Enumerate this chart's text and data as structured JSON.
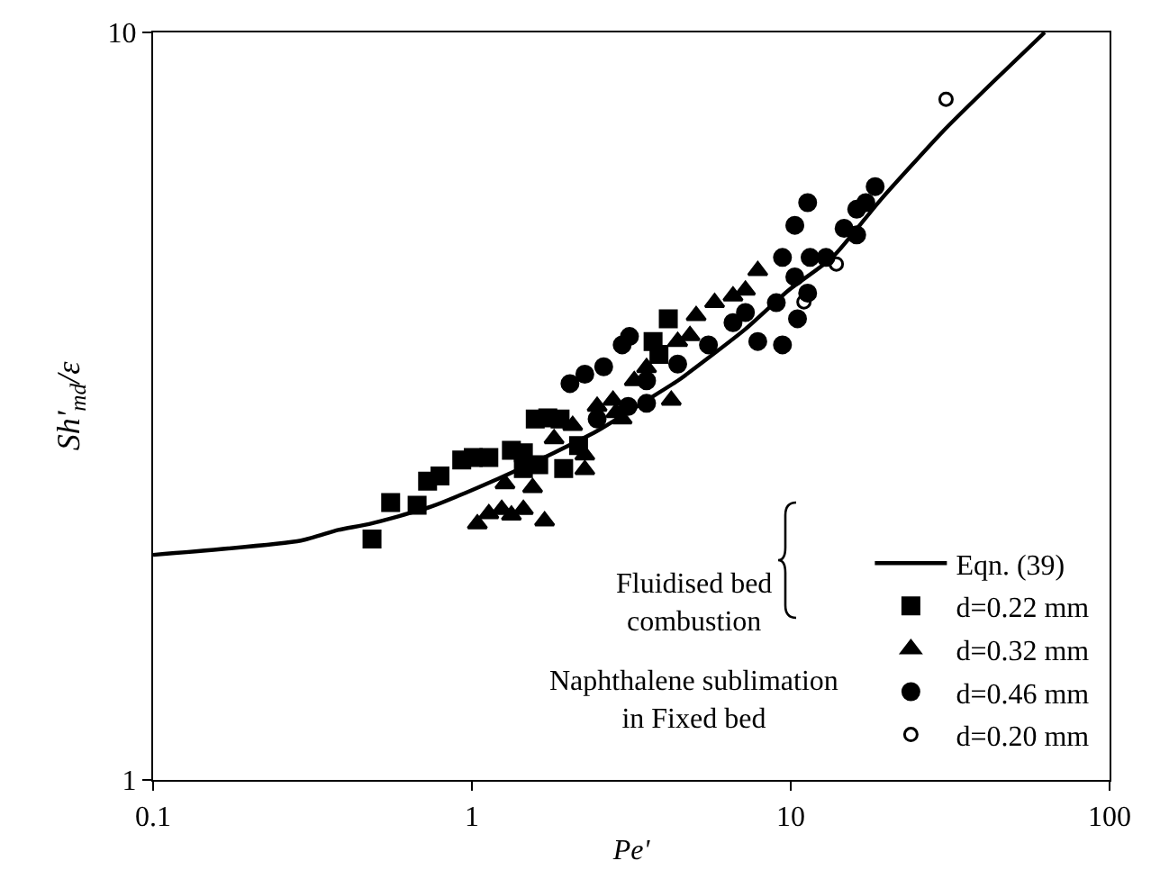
{
  "chart_data": {
    "type": "scatter",
    "xlabel": "Pe'",
    "ylabel": "Sh'$_{md}$/ε",
    "log": "xy",
    "grid": false,
    "legend": "bottom right",
    "xlim": [
      0.1,
      100
    ],
    "xticks": [
      0.1,
      1,
      10,
      100
    ],
    "ylim": [
      1,
      10
    ],
    "yticks": [
      1,
      10
    ],
    "annotations": [
      "Fluidised bed combustion",
      "Naphthalene sublimation in Fixed bed"
    ],
    "series": [
      {
        "name": "Eqn. (39)",
        "type": "line",
        "color": "#000000",
        "marker": "none",
        "line_style": "solid",
        "x": [
          0.1,
          0.291,
          0.381,
          0.476,
          0.743,
          1.21,
          1.81,
          2.47,
          3.53,
          4.42,
          5.52,
          7.21,
          9.85,
          13.5,
          19.2,
          30.0,
          42.8,
          62.6
        ],
        "values": [
          2.0,
          2.09,
          2.16,
          2.2,
          2.32,
          2.53,
          2.74,
          2.93,
          3.22,
          3.42,
          3.67,
          4.01,
          4.52,
          5.0,
          5.98,
          7.37,
          8.56,
          10
        ]
      },
      {
        "name": "d=0.22 mm",
        "color": "#000000",
        "marker": "square",
        "x": [
          0.486,
          0.556,
          0.673,
          0.726,
          0.794,
          0.929,
          1.01,
          1.13,
          1.33,
          1.45,
          1.58,
          1.73,
          1.89,
          1.45,
          1.62,
          1.94,
          2.16,
          3.7,
          4.13,
          3.86
        ],
        "values": [
          2.1,
          2.35,
          2.33,
          2.51,
          2.55,
          2.68,
          2.7,
          2.7,
          2.76,
          2.74,
          3.04,
          3.05,
          3.04,
          2.61,
          2.64,
          2.61,
          2.8,
          3.86,
          4.14,
          3.71
        ]
      },
      {
        "name": "d=0.32 mm",
        "color": "#000000",
        "marker": "triangle",
        "x": [
          1.04,
          1.13,
          1.24,
          1.33,
          1.45,
          1.69,
          1.27,
          1.55,
          2.26,
          2.26,
          1.81,
          2.07,
          2.47,
          2.77,
          2.96,
          3.23,
          3.53,
          4.22,
          4.42,
          5.05,
          5.77,
          6.59,
          7.21,
          7.88,
          4.83,
          2.83
        ],
        "values": [
          2.2,
          2.27,
          2.3,
          2.26,
          2.3,
          2.22,
          2.49,
          2.46,
          2.6,
          2.72,
          2.86,
          2.98,
          3.16,
          3.22,
          3.04,
          3.42,
          3.56,
          3.22,
          3.86,
          4.18,
          4.35,
          4.44,
          4.52,
          4.8,
          3.93,
          3.1
        ]
      },
      {
        "name": "d=0.46 mm",
        "color": "#000000",
        "marker": "circle",
        "x": [
          2.03,
          2.26,
          2.59,
          2.96,
          3.12,
          2.47,
          3.09,
          3.53,
          4.42,
          5.52,
          6.59,
          7.88,
          9.01,
          9.42,
          9.42,
          10.3,
          11.3,
          10.5,
          11.3,
          10.3,
          11.5,
          12.9,
          14.7,
          16.1,
          16.1,
          17.2,
          18.4,
          3.53,
          7.21
        ],
        "values": [
          3.39,
          3.49,
          3.57,
          3.82,
          3.92,
          3.04,
          3.16,
          3.19,
          3.6,
          3.82,
          4.09,
          3.86,
          4.35,
          5.0,
          3.82,
          5.52,
          5.92,
          4.14,
          4.48,
          4.71,
          5.0,
          5.0,
          5.47,
          5.36,
          5.8,
          5.92,
          6.22,
          3.42,
          4.22
        ]
      },
      {
        "name": "d=0.20 mm",
        "color": "#000000",
        "marker": "circle-open",
        "x": [
          30.7,
          13.9,
          11.0
        ],
        "values": [
          8.14,
          4.9,
          4.36
        ]
      }
    ]
  }
}
